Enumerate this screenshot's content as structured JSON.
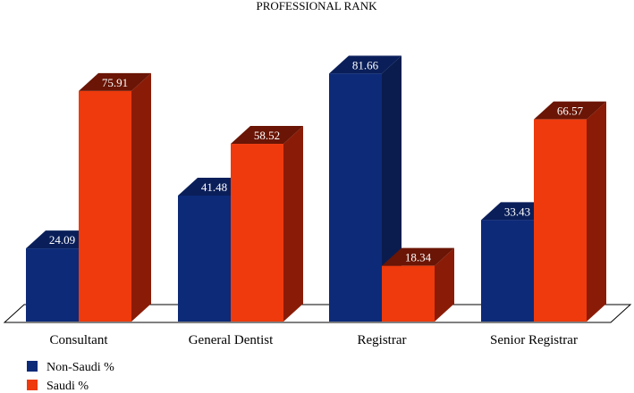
{
  "chart_data": {
    "type": "bar",
    "title": "PROFESSIONAL RANK",
    "xlabel": "",
    "ylabel": "",
    "categories": [
      "Consultant",
      "General Dentist",
      "Registrar",
      "Senior Registrar"
    ],
    "series": [
      {
        "name": "Non-Saudi %",
        "values": [
          24.09,
          41.48,
          81.66,
          33.43
        ],
        "color": "#0c2a78",
        "side_color": "#0a1c4e",
        "top_color": "#0a1f5a"
      },
      {
        "name": "Saudi %",
        "values": [
          75.91,
          58.52,
          18.34,
          66.57
        ],
        "color": "#ee3a0c",
        "side_color": "#8a1c07",
        "top_color": "#6a1505"
      }
    ],
    "data_labels": [
      [
        "24.09",
        "41.48",
        "81.66",
        "33.43"
      ],
      [
        "75.91",
        "58.52",
        "18.34",
        "66.57"
      ]
    ],
    "ylim": [
      0,
      100
    ],
    "grid": false,
    "style": "3d-bar",
    "legend_position": "bottom-left"
  }
}
